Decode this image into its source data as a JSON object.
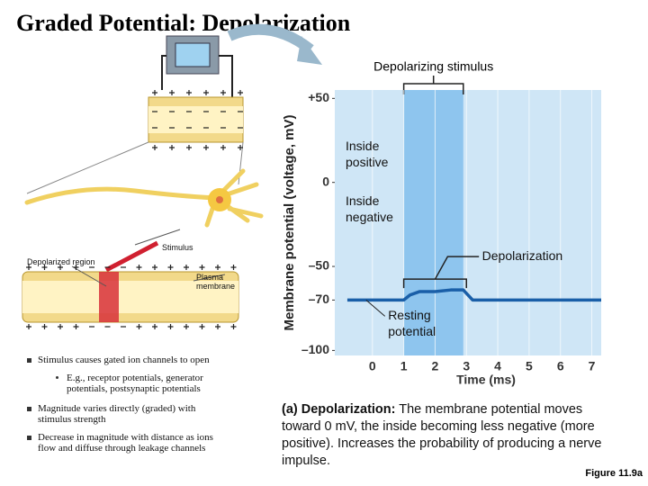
{
  "title": "Graded Potential: Depolarization",
  "chart_data": {
    "type": "line",
    "ylabel": "Membrane potential (voltage, mV)",
    "xlabel": "Time (ms)",
    "x": [
      -0.8,
      1,
      1.2,
      1.5,
      2,
      2.5,
      2.9,
      3.2,
      7.3
    ],
    "series": [
      {
        "name": "Depolarization",
        "color": "#1a5fa8",
        "values": [
          -70,
          -70,
          -67,
          -65,
          -65,
          -64,
          -64,
          -70,
          -70
        ]
      }
    ],
    "stimulus_label": "Depolarizing stimulus",
    "stimulus_span": [
      1,
      2.9
    ],
    "annotations": [
      "Inside positive",
      "Inside negative",
      "Depolarization",
      "Resting potential"
    ],
    "xlim": [
      -1.2,
      7.3
    ],
    "ylim": [
      -103,
      55
    ],
    "xticks": [
      0,
      1,
      2,
      3,
      4,
      5,
      6,
      7
    ],
    "yticks": [
      {
        "value": 50,
        "label": "+50"
      },
      0,
      {
        "value": -50,
        "label": "–50"
      },
      {
        "value": -70,
        "label": "–70"
      },
      {
        "value": -100,
        "label": "–100"
      }
    ],
    "plot_color": "#cfe6f6",
    "stimulus_color": "#8ec5ee"
  },
  "diagram": {
    "stimulus": "Stimulus",
    "depolarized_region": "Depolarized region",
    "plasma_membrane": "Plasma membrane"
  },
  "bullets": [
    "Stimulus causes gated ion channels to open",
    "E.g., receptor potentials, generator potentials, postsynaptic potentials",
    "Magnitude varies directly (graded) with stimulus strength",
    "Decrease in magnitude with distance as ions flow and diffuse through leakage channels"
  ],
  "caption": {
    "label": "(a) Depolarization:",
    "text": "The membrane potential moves toward 0 mV, the inside becoming less negative (more positive). Increases the probability of producing a nerve impulse."
  },
  "figure_label": "Figure 11.9a"
}
